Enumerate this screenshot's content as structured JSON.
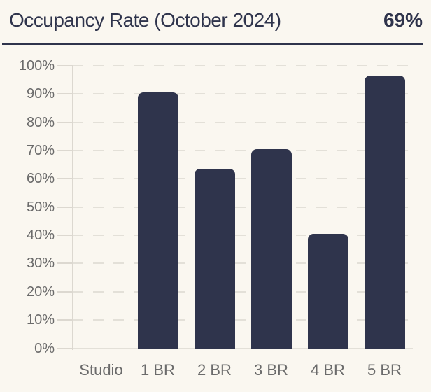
{
  "header": {
    "title": "Occupancy Rate (October 2024)",
    "value": "69%"
  },
  "chart_data": {
    "type": "bar",
    "title": "Occupancy Rate (October 2024)",
    "summary_value": "69%",
    "categories": [
      "Studio",
      "1 BR",
      "2 BR",
      "3 BR",
      "4 BR",
      "5 BR"
    ],
    "values": [
      0,
      90.5,
      63.5,
      70.5,
      40.5,
      96.5
    ],
    "xlabel": "",
    "ylabel": "",
    "ylim": [
      0,
      100
    ],
    "ytick_step": 10,
    "y_tick_labels": [
      "0%",
      "10%",
      "20%",
      "30%",
      "40%",
      "50%",
      "60%",
      "70%",
      "80%",
      "90%",
      "100%"
    ],
    "grid": "horizontal-dashed",
    "legend": "none",
    "colors": {
      "background": "#faf7f0",
      "bar": "#2f344c",
      "title": "#2f344c",
      "grid": "#e3e0d8",
      "axis": "#dcd8d0",
      "label": "#6b6b6b"
    }
  }
}
